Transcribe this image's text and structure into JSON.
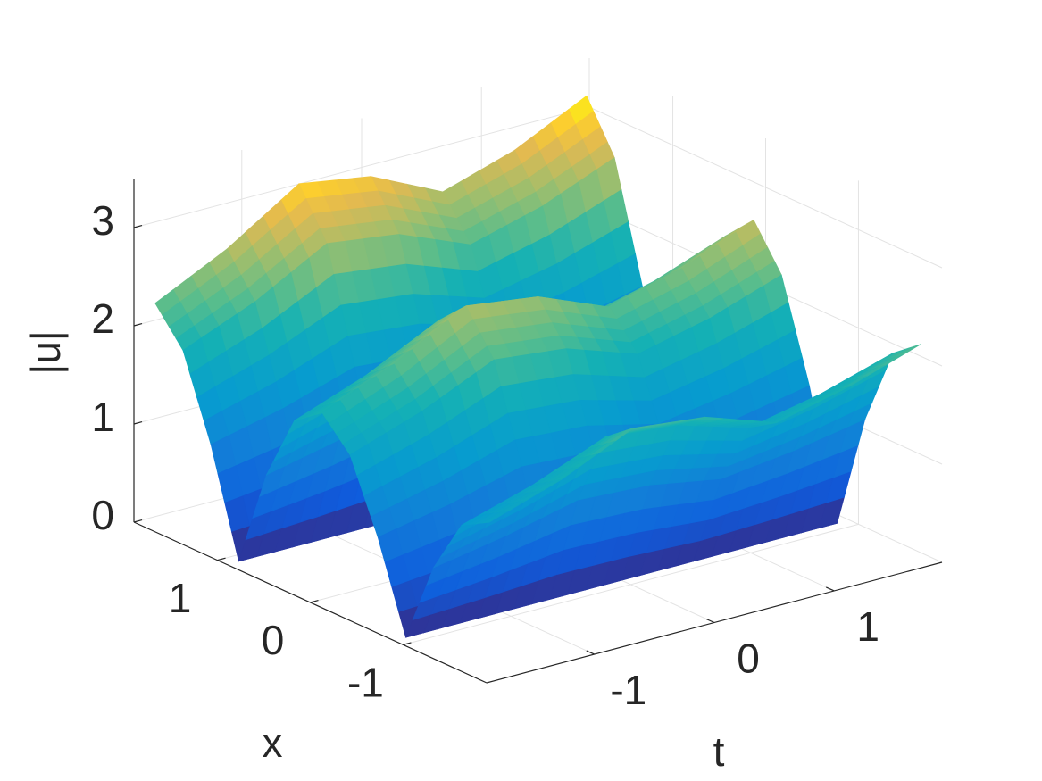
{
  "chart_data": {
    "type": "surface",
    "xlabel": "x",
    "tlabel": "t",
    "zlabel": "|u|",
    "xlim": [
      -1.9,
      1.9
    ],
    "xticks": [
      -1,
      0,
      1
    ],
    "tlim": [
      -1.9,
      1.9
    ],
    "tticks": [
      -1,
      0,
      1
    ],
    "zlim": [
      0,
      3.5
    ],
    "zticks": [
      0,
      1,
      2,
      3
    ],
    "grid": true,
    "colormap": "parula",
    "x": [
      -1.8,
      -1.5,
      -1.2,
      -0.9,
      -0.6,
      -0.3,
      0,
      0.3,
      0.6,
      0.9,
      1.2,
      1.5,
      1.8
    ],
    "t": [
      -1.8,
      -1.2,
      -0.6,
      0,
      0.6,
      1.2,
      1.8
    ],
    "z": [
      [
        1.56,
        1.4,
        0.84,
        0,
        0.89,
        1.6,
        1.9,
        1.69,
        1.01,
        0,
        1.06,
        1.89,
        2.24
      ],
      [
        1.8,
        1.62,
        0.97,
        0,
        1.03,
        1.85,
        2.2,
        1.96,
        1.17,
        0,
        1.23,
        2.19,
        2.6
      ],
      [
        2.13,
        1.91,
        1.14,
        0,
        1.22,
        2.18,
        2.6,
        2.32,
        1.38,
        0,
        1.46,
        2.59,
        3.07
      ],
      [
        2.05,
        1.84,
        1.1,
        0,
        1.18,
        2.1,
        2.5,
        2.23,
        1.33,
        0,
        1.4,
        2.49,
        2.95
      ],
      [
        1.8,
        1.62,
        0.97,
        0,
        1.03,
        1.85,
        2.2,
        1.96,
        1.17,
        0,
        1.23,
        2.19,
        2.6
      ],
      [
        1.97,
        1.77,
        1.06,
        0,
        1.13,
        2.02,
        2.4,
        2.14,
        1.27,
        0,
        1.34,
        2.39,
        2.83
      ],
      [
        2.21,
        1.99,
        1.19,
        0,
        1.27,
        2.27,
        2.7,
        2.41,
        1.43,
        0,
        1.51,
        2.69,
        3.19
      ]
    ]
  }
}
